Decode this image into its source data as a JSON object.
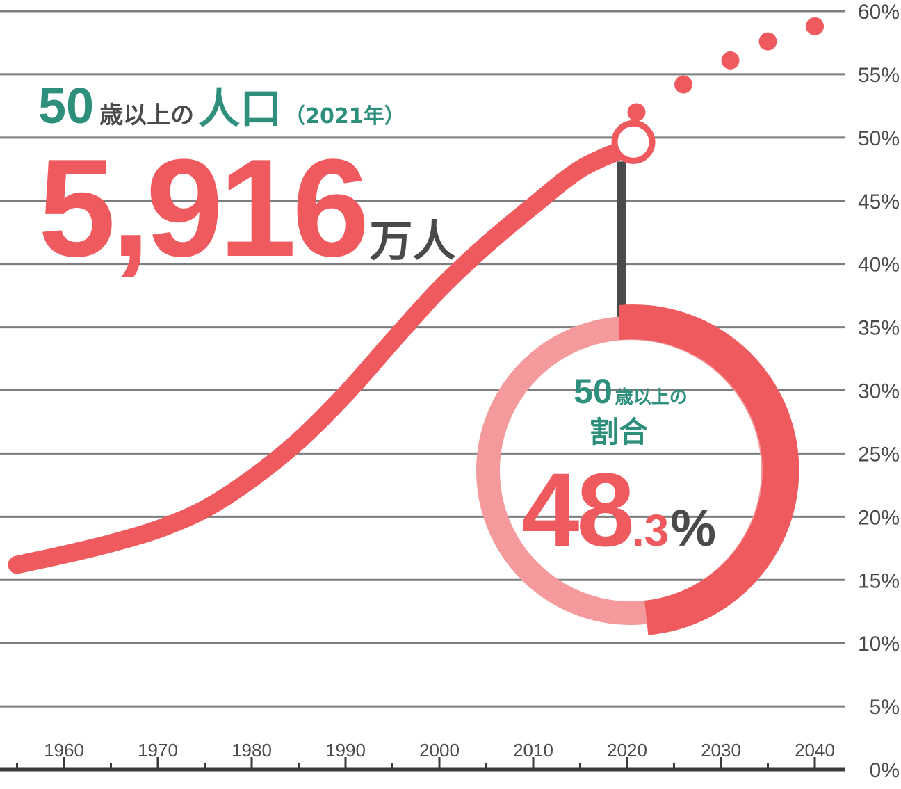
{
  "chart_data": {
    "type": "line",
    "x": [
      1955,
      1960,
      1965,
      1970,
      1975,
      1980,
      1985,
      1990,
      1995,
      2000,
      2005,
      2010,
      2015,
      2020
    ],
    "series": [
      {
        "values": [
          16.2,
          17.0,
          17.9,
          19.0,
          20.6,
          23.0,
          26.0,
          29.7,
          33.9,
          38.0,
          41.5,
          44.6,
          47.5,
          49.2
        ],
        "projection_x": [
          2021,
          2026,
          2031,
          2035,
          2040
        ],
        "projection_values": [
          52.0,
          54.2,
          56.1,
          57.6,
          58.8
        ]
      }
    ],
    "xticks": [
      "1960",
      "1970",
      "1980",
      "1990",
      "2000",
      "2010",
      "2020",
      "2030",
      "2040"
    ],
    "xtick_values": [
      1960,
      1970,
      1980,
      1990,
      2000,
      2010,
      2020,
      2030,
      2040
    ],
    "yticks": [
      "0%",
      "5%",
      "10%",
      "15%",
      "20%",
      "25%",
      "30%",
      "35%",
      "40%",
      "45%",
      "50%",
      "55%",
      "60%"
    ],
    "xlim": [
      1954,
      2042
    ],
    "ylim": [
      0,
      60
    ],
    "grid": true,
    "highlight_x": 2020,
    "highlight_value": 49.2,
    "donut_fraction": 0.483,
    "colors": {
      "line": "#ee5a5e",
      "donut_light": "#f49a9c",
      "grid": "#7d7d7d",
      "teal": "#2e8f7d",
      "dark": "#4a4a4a"
    }
  },
  "annotation": {
    "num": "50",
    "pre": "歳以上の",
    "main": "人口",
    "year": "（2021年）",
    "big_number": "5,916",
    "unit": "万人"
  },
  "donut_label": {
    "num": "50",
    "line1": "歳以上の",
    "line2": "割合",
    "value": "48",
    "decimal": ".3",
    "unit": "%"
  }
}
